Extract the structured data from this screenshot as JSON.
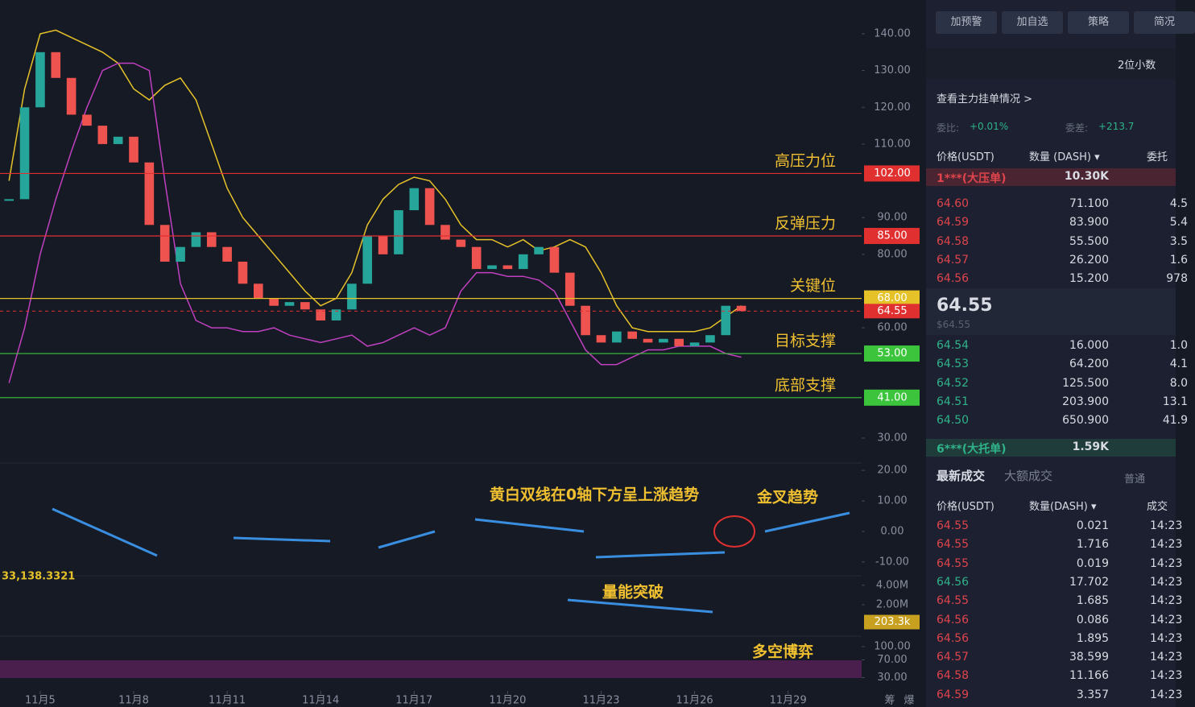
{
  "chart": {
    "type": "candlestick",
    "x": [
      4,
      4.5,
      5,
      5.5,
      6,
      6.5,
      7,
      7.5,
      8,
      8.5,
      9,
      9.5,
      10,
      10.5,
      11,
      11.5,
      12,
      12.5,
      13,
      13.5,
      14,
      14.5,
      15,
      15.5,
      16,
      16.5,
      17,
      17.5,
      18,
      18.5,
      19,
      19.5,
      20,
      20.5,
      21,
      21.5,
      22,
      22.5,
      23,
      23.5,
      24,
      24.5,
      25,
      25.5,
      26,
      26.5,
      27,
      27.5
    ],
    "values": [
      95,
      120,
      135,
      128,
      118,
      115,
      110,
      112,
      105,
      88,
      78,
      82,
      86,
      82,
      78,
      72,
      68,
      66,
      67,
      65,
      62,
      65,
      72,
      85,
      80,
      92,
      98,
      88,
      84,
      82,
      76,
      77,
      76,
      80,
      82,
      75,
      66,
      58,
      56,
      59,
      57,
      56,
      57,
      55,
      56,
      58,
      66,
      64.55
    ],
    "up_color": "#26a69a",
    "down_color": "#ef5350",
    "bands": [
      {
        "color": "#e6c229",
        "values": [
          100,
          125,
          140,
          141,
          139,
          137,
          135,
          132,
          125,
          122,
          126,
          128,
          122,
          110,
          98,
          90,
          85,
          80,
          75,
          70,
          66,
          68,
          75,
          88,
          95,
          99,
          101,
          100,
          95,
          88,
          84,
          84,
          82,
          84,
          81,
          82,
          84,
          82,
          75,
          66,
          60,
          59,
          59,
          59,
          59,
          60,
          63,
          66
        ]
      },
      {
        "color": "#c040c0",
        "values": [
          45,
          60,
          80,
          95,
          108,
          120,
          130,
          132,
          132,
          130,
          100,
          72,
          62,
          60,
          60,
          59,
          59,
          60,
          58,
          57,
          56,
          57,
          58,
          55,
          56,
          58,
          60,
          58,
          60,
          70,
          75,
          75,
          74,
          74,
          73,
          70,
          62,
          54,
          50,
          50,
          52,
          54,
          54,
          55,
          55,
          55,
          53,
          52
        ]
      }
    ],
    "xlim": [
      3.71,
      31.36
    ],
    "xticks": [
      {
        "value": 5,
        "label": "11月5"
      },
      {
        "value": 8,
        "label": "11月8"
      },
      {
        "value": 11,
        "label": "11月11"
      },
      {
        "value": 14,
        "label": "11月14"
      },
      {
        "value": 17,
        "label": "11月17"
      },
      {
        "value": 20,
        "label": "11月20"
      },
      {
        "value": 23,
        "label": "11月23"
      },
      {
        "value": 26,
        "label": "11月26"
      },
      {
        "value": 29,
        "label": "11月29"
      }
    ],
    "ylim": [
      26.5,
      149.2
    ],
    "yticks": [
      {
        "value": 140,
        "label": "140.00"
      },
      {
        "value": 130,
        "label": "130.00"
      },
      {
        "value": 120,
        "label": "120.00"
      },
      {
        "value": 110,
        "label": "110.00"
      },
      {
        "value": 90,
        "label": "90.00"
      },
      {
        "value": 80,
        "label": "80.00"
      },
      {
        "value": 60,
        "label": "60.00"
      },
      {
        "value": 30,
        "label": "30.00"
      }
    ],
    "levels": [
      {
        "label": "高压力位",
        "value": 102,
        "value_label": "102.00",
        "color": "#e03030"
      },
      {
        "label": "反弹压力",
        "value": 85,
        "value_label": "85.00",
        "color": "#e03030"
      },
      {
        "label": "关键位",
        "value": 68,
        "value_label": "68.00",
        "color": "#e6c229"
      },
      {
        "label": "目标支撑",
        "value": 53,
        "value_label": "53.00",
        "color": "#3cc43c"
      },
      {
        "label": "底部支撑",
        "value": 41,
        "value_label": "41.00",
        "color": "#3cc43c"
      }
    ],
    "last": {
      "value": 64.55,
      "value_label": "64.55",
      "color": "#e03030"
    },
    "macd": {
      "annotation": "黄白双线在0轴下方呈上涨趋势",
      "cross_annotation": "金叉趋势",
      "ylim": [
        -13.2,
        21.1
      ],
      "yticks": [
        {
          "value": 20,
          "label": "20.00"
        },
        {
          "value": 10,
          "label": "10.00"
        },
        {
          "value": 0,
          "label": "0.00"
        },
        {
          "value": -10,
          "label": "-10.00"
        }
      ]
    },
    "volume": {
      "label": "33,138.3321",
      "annotation": "量能突破",
      "ylim": [
        0,
        4400000
      ],
      "yticks": [
        {
          "value": 4000000,
          "label": "4.00M"
        },
        {
          "value": 2000000,
          "label": "2.00M"
        }
      ],
      "last": {
        "value": 203300,
        "value_label": "203.3k"
      }
    },
    "rsi": {
      "annotation": "多空博弈",
      "ylim": [
        0,
        100
      ],
      "yticks": [
        {
          "value": 100,
          "label": "100.00"
        },
        {
          "value": 70,
          "label": "70.00"
        },
        {
          "value": 30,
          "label": "30.00"
        }
      ]
    },
    "corner_icons": [
      "筹",
      "爆"
    ]
  },
  "side_panel": {
    "buttons": [
      "加预警",
      "加自选",
      "策略",
      "简况"
    ],
    "decimals": "2位小数",
    "main_orders_link": "查看主力挂单情况 >",
    "ratio_label": "委比:",
    "ratio": "+0.01%",
    "diff_label": "委差:",
    "diff": "+213.7",
    "book_headers": [
      "价格(USDT)",
      "数量 (DASH) ▾",
      "委托"
    ],
    "big_ask": {
      "name": "1***(大压单)",
      "qty": "10.30K"
    },
    "asks": [
      [
        "64.60",
        "71.100",
        "4.5"
      ],
      [
        "64.59",
        "83.900",
        "5.4"
      ],
      [
        "64.58",
        "55.500",
        "3.5"
      ],
      [
        "64.57",
        "26.200",
        "1.6"
      ],
      [
        "64.56",
        "15.200",
        "978"
      ]
    ],
    "last_price": "64.55",
    "last_price_usd": "$64.55",
    "bids": [
      [
        "64.54",
        "16.000",
        "1.0"
      ],
      [
        "64.53",
        "64.200",
        "4.1"
      ],
      [
        "64.52",
        "125.500",
        "8.0"
      ],
      [
        "64.51",
        "203.900",
        "13.1"
      ],
      [
        "64.50",
        "650.900",
        "41.9"
      ]
    ],
    "big_bid": {
      "name": "6***(大托单)",
      "qty": "1.59K"
    },
    "trade_tabs": [
      "最新成交",
      "大额成交"
    ],
    "trade_filter": "普通",
    "trade_headers": [
      "价格(USDT)",
      "数量(DASH) ▾",
      "成交"
    ],
    "trades": [
      {
        "price": "64.55",
        "qty": "0.021",
        "time": "14:23",
        "color": "#e0444c"
      },
      {
        "price": "64.55",
        "qty": "1.716",
        "time": "14:23",
        "color": "#e0444c"
      },
      {
        "price": "64.55",
        "qty": "0.019",
        "time": "14:23",
        "color": "#e0444c"
      },
      {
        "price": "64.56",
        "qty": "17.702",
        "time": "14:23",
        "color": "#2fb38a"
      },
      {
        "price": "64.55",
        "qty": "1.685",
        "time": "14:23",
        "color": "#e0444c"
      },
      {
        "price": "64.56",
        "qty": "0.086",
        "time": "14:23",
        "color": "#e0444c"
      },
      {
        "price": "64.56",
        "qty": "1.895",
        "time": "14:23",
        "color": "#e0444c"
      },
      {
        "price": "64.57",
        "qty": "38.599",
        "time": "14:23",
        "color": "#e0444c"
      },
      {
        "price": "64.58",
        "qty": "11.166",
        "time": "14:23",
        "color": "#e0444c"
      },
      {
        "price": "64.59",
        "qty": "3.357",
        "time": "14:23",
        "color": "#e0444c"
      }
    ]
  }
}
